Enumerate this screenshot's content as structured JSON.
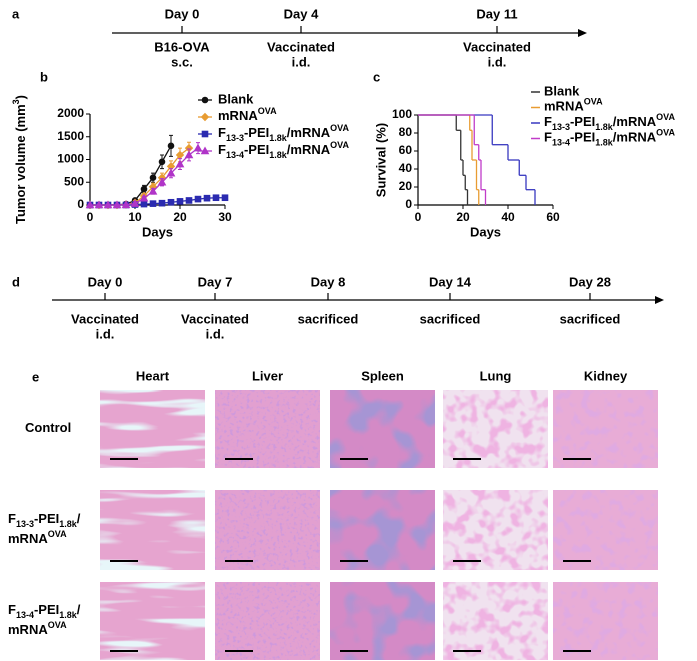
{
  "panel_a": {
    "label": "a",
    "events": [
      {
        "day": "Day 0",
        "lines": [
          "B16-OVA",
          "s.c."
        ]
      },
      {
        "day": "Day 4",
        "lines": [
          "Vaccinated",
          "i.d."
        ]
      },
      {
        "day": "Day 11",
        "lines": [
          "Vaccinated",
          "i.d."
        ]
      }
    ]
  },
  "chart_data": [
    {
      "type": "line",
      "label": "b",
      "xlabel": "Days",
      "ylabel": [
        {
          "t": "Tumor volume (mm"
        },
        {
          "t": "3",
          "s": "sup"
        },
        {
          "t": ")"
        }
      ],
      "xlim": [
        0,
        30
      ],
      "xticks": [
        0,
        10,
        20,
        30
      ],
      "ylim": [
        0,
        2000
      ],
      "yticks": [
        0,
        500,
        1000,
        1500,
        2000
      ],
      "series": [
        {
          "name": "Blank",
          "color": "#111111",
          "marker": "circle",
          "x": [
            0,
            2,
            4,
            6,
            8,
            10,
            12,
            14,
            16,
            18
          ],
          "values": [
            0,
            0,
            0,
            5,
            20,
            100,
            350,
            600,
            950,
            1300
          ],
          "errors": [
            0,
            0,
            0,
            5,
            10,
            30,
            80,
            100,
            150,
            230
          ]
        },
        {
          "name": [
            {
              "t": "mRNA"
            },
            {
              "t": "OVA",
              "s": "sup"
            }
          ],
          "color": "#e89c32",
          "marker": "diamond",
          "x": [
            0,
            2,
            4,
            6,
            8,
            10,
            12,
            14,
            16,
            18,
            20,
            22
          ],
          "values": [
            0,
            0,
            0,
            0,
            10,
            50,
            200,
            400,
            600,
            850,
            1100,
            1250
          ],
          "errors": [
            0,
            0,
            0,
            0,
            5,
            20,
            50,
            80,
            100,
            120,
            150,
            130
          ]
        },
        {
          "name": [
            {
              "t": "F"
            },
            {
              "t": "13-3",
              "s": "sub"
            },
            {
              "t": "-PEI"
            },
            {
              "t": "1.8k",
              "s": "sub"
            },
            {
              "t": "/mRNA"
            },
            {
              "t": "OVA",
              "s": "sup"
            }
          ],
          "color": "#2b2bb0",
          "marker": "square",
          "x": [
            0,
            2,
            4,
            6,
            8,
            10,
            12,
            14,
            16,
            18,
            20,
            22,
            24,
            26,
            28,
            30
          ],
          "values": [
            0,
            0,
            0,
            0,
            0,
            10,
            20,
            30,
            40,
            60,
            80,
            100,
            130,
            150,
            160,
            160
          ],
          "errors": [
            0,
            0,
            0,
            0,
            0,
            5,
            10,
            10,
            15,
            20,
            30,
            40,
            50,
            50,
            60,
            60
          ]
        },
        {
          "name": [
            {
              "t": "F"
            },
            {
              "t": "13-4",
              "s": "sub"
            },
            {
              "t": "-PEI"
            },
            {
              "t": "1.8k",
              "s": "sub"
            },
            {
              "t": "/mRNA"
            },
            {
              "t": "OVA",
              "s": "sup"
            }
          ],
          "color": "#b035c8",
          "marker": "triangle",
          "x": [
            0,
            2,
            4,
            6,
            8,
            10,
            12,
            14,
            16,
            18,
            20,
            22,
            24
          ],
          "values": [
            0,
            0,
            0,
            0,
            5,
            30,
            150,
            300,
            500,
            700,
            900,
            1100,
            1250
          ],
          "errors": [
            0,
            0,
            0,
            0,
            5,
            10,
            40,
            60,
            80,
            100,
            120,
            130,
            120
          ]
        }
      ]
    },
    {
      "type": "step",
      "label": "c",
      "xlabel": "Days",
      "ylabel": "Survival (%)",
      "xlim": [
        0,
        60
      ],
      "xticks": [
        0,
        20,
        40,
        60
      ],
      "ylim": [
        0,
        100
      ],
      "yticks": [
        0,
        20,
        40,
        60,
        80,
        100
      ],
      "series": [
        {
          "name": "Blank",
          "color": "#333333",
          "x": [
            0,
            17,
            19,
            20,
            21,
            22
          ],
          "values": [
            100,
            83,
            50,
            33,
            17,
            0
          ]
        },
        {
          "name": [
            {
              "t": "mRNA"
            },
            {
              "t": "OVA",
              "s": "sup"
            }
          ],
          "color": "#e89c32",
          "x": [
            0,
            23,
            24,
            26,
            27
          ],
          "values": [
            100,
            83,
            50,
            17,
            0
          ]
        },
        {
          "name": [
            {
              "t": "F"
            },
            {
              "t": "13-3",
              "s": "sub"
            },
            {
              "t": "-PEI"
            },
            {
              "t": "1.8k",
              "s": "sub"
            },
            {
              "t": "/mRNA"
            },
            {
              "t": "OVA",
              "s": "sup"
            }
          ],
          "color": "#3838c0",
          "x": [
            0,
            33,
            40,
            45,
            48,
            52
          ],
          "values": [
            100,
            67,
            50,
            33,
            17,
            0
          ]
        },
        {
          "name": [
            {
              "t": "F"
            },
            {
              "t": "13-4",
              "s": "sub"
            },
            {
              "t": "-PEI"
            },
            {
              "t": "1.8k",
              "s": "sub"
            },
            {
              "t": "/mRNA"
            },
            {
              "t": "OVA",
              "s": "sup"
            }
          ],
          "color": "#c03cc8",
          "x": [
            0,
            25,
            27,
            28,
            30
          ],
          "values": [
            100,
            67,
            50,
            17,
            0
          ]
        }
      ]
    }
  ],
  "panel_d": {
    "label": "d",
    "events": [
      {
        "day": "Day 0",
        "lines": [
          "Vaccinated",
          "i.d."
        ]
      },
      {
        "day": "Day 7",
        "lines": [
          "Vaccinated",
          "i.d."
        ]
      },
      {
        "day": "Day 8",
        "lines": [
          "sacrificed"
        ]
      },
      {
        "day": "Day 14",
        "lines": [
          "sacrificed"
        ]
      },
      {
        "day": "Day 28",
        "lines": [
          "sacrificed"
        ]
      }
    ]
  },
  "panel_e": {
    "label": "e",
    "columns": [
      "Heart",
      "Liver",
      "Spleen",
      "Lung",
      "Kidney"
    ],
    "rows": [
      {
        "label": [
          [
            {
              "t": "Control"
            }
          ]
        ]
      },
      {
        "label": [
          [
            {
              "t": "F"
            },
            {
              "t": "13-3",
              "s": "sub"
            },
            {
              "t": "-PEI"
            },
            {
              "t": "1.8k",
              "s": "sub"
            },
            {
              "t": "/"
            }
          ],
          [
            {
              "t": "mRNA"
            },
            {
              "t": "OVA",
              "s": "sup"
            }
          ]
        ]
      },
      {
        "label": [
          [
            {
              "t": "F"
            },
            {
              "t": "13-4",
              "s": "sub"
            },
            {
              "t": "-PEI"
            },
            {
              "t": "1.8k",
              "s": "sub"
            },
            {
              "t": "/"
            }
          ],
          [
            {
              "t": "mRNA"
            },
            {
              "t": "OVA",
              "s": "sup"
            }
          ]
        ]
      }
    ]
  }
}
